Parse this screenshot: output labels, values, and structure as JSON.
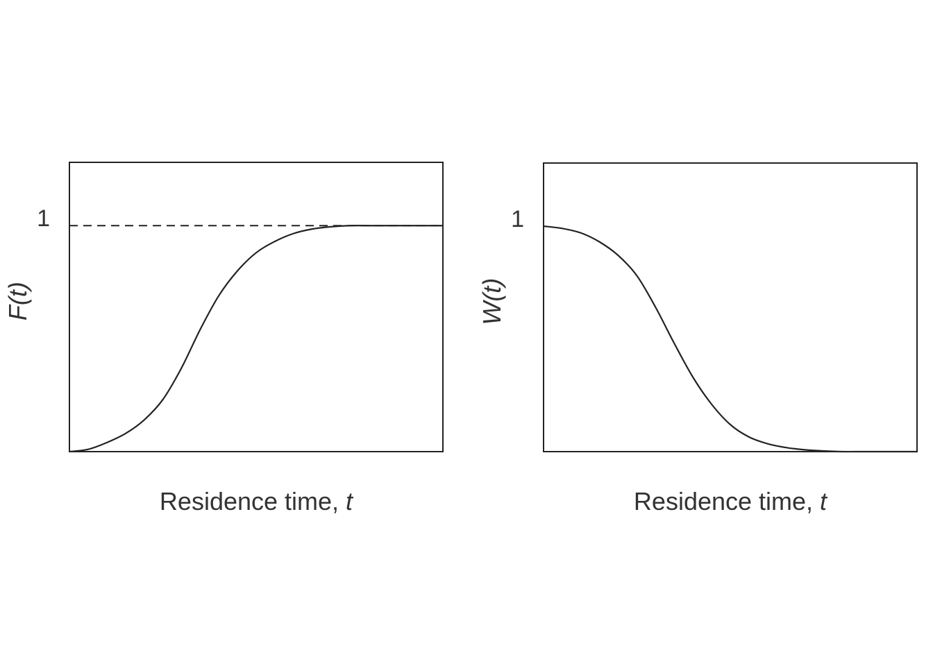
{
  "chart_data": [
    {
      "type": "line",
      "xlabel": "Residence time, ",
      "xlabel_var": "t",
      "ylabel": "F(t)",
      "ytick_label": "1",
      "xlim": [
        0,
        1
      ],
      "ylim": [
        0,
        1.28
      ],
      "reference_line": {
        "y": 1,
        "style": "dashed"
      },
      "series": [
        {
          "x": [
            0,
            0.05,
            0.1,
            0.15,
            0.2,
            0.25,
            0.3,
            0.35,
            0.4,
            0.45,
            0.5,
            0.55,
            0.6,
            0.65,
            0.7,
            0.75,
            0.8,
            0.85,
            0.9,
            0.95,
            1.0
          ],
          "y": [
            0.0,
            0.01,
            0.04,
            0.08,
            0.14,
            0.23,
            0.37,
            0.54,
            0.69,
            0.8,
            0.88,
            0.93,
            0.965,
            0.985,
            0.995,
            1.0,
            1.0,
            1.0,
            1.0,
            1.0,
            1.0
          ]
        }
      ]
    },
    {
      "type": "line",
      "xlabel": "Residence time, ",
      "xlabel_var": "t",
      "ylabel": "W(t)",
      "ytick_label": "1",
      "xlim": [
        0,
        1
      ],
      "ylim": [
        0,
        1.28
      ],
      "series": [
        {
          "x": [
            0,
            0.05,
            0.1,
            0.15,
            0.2,
            0.25,
            0.3,
            0.35,
            0.4,
            0.45,
            0.5,
            0.55,
            0.6,
            0.65,
            0.7,
            0.75,
            0.8,
            0.85,
            0.9,
            0.95,
            1.0
          ],
          "y": [
            1.0,
            0.99,
            0.97,
            0.93,
            0.87,
            0.78,
            0.64,
            0.48,
            0.33,
            0.21,
            0.12,
            0.065,
            0.035,
            0.018,
            0.008,
            0.003,
            0.0,
            0.0,
            0.0,
            0.0,
            0.0
          ]
        }
      ]
    }
  ]
}
